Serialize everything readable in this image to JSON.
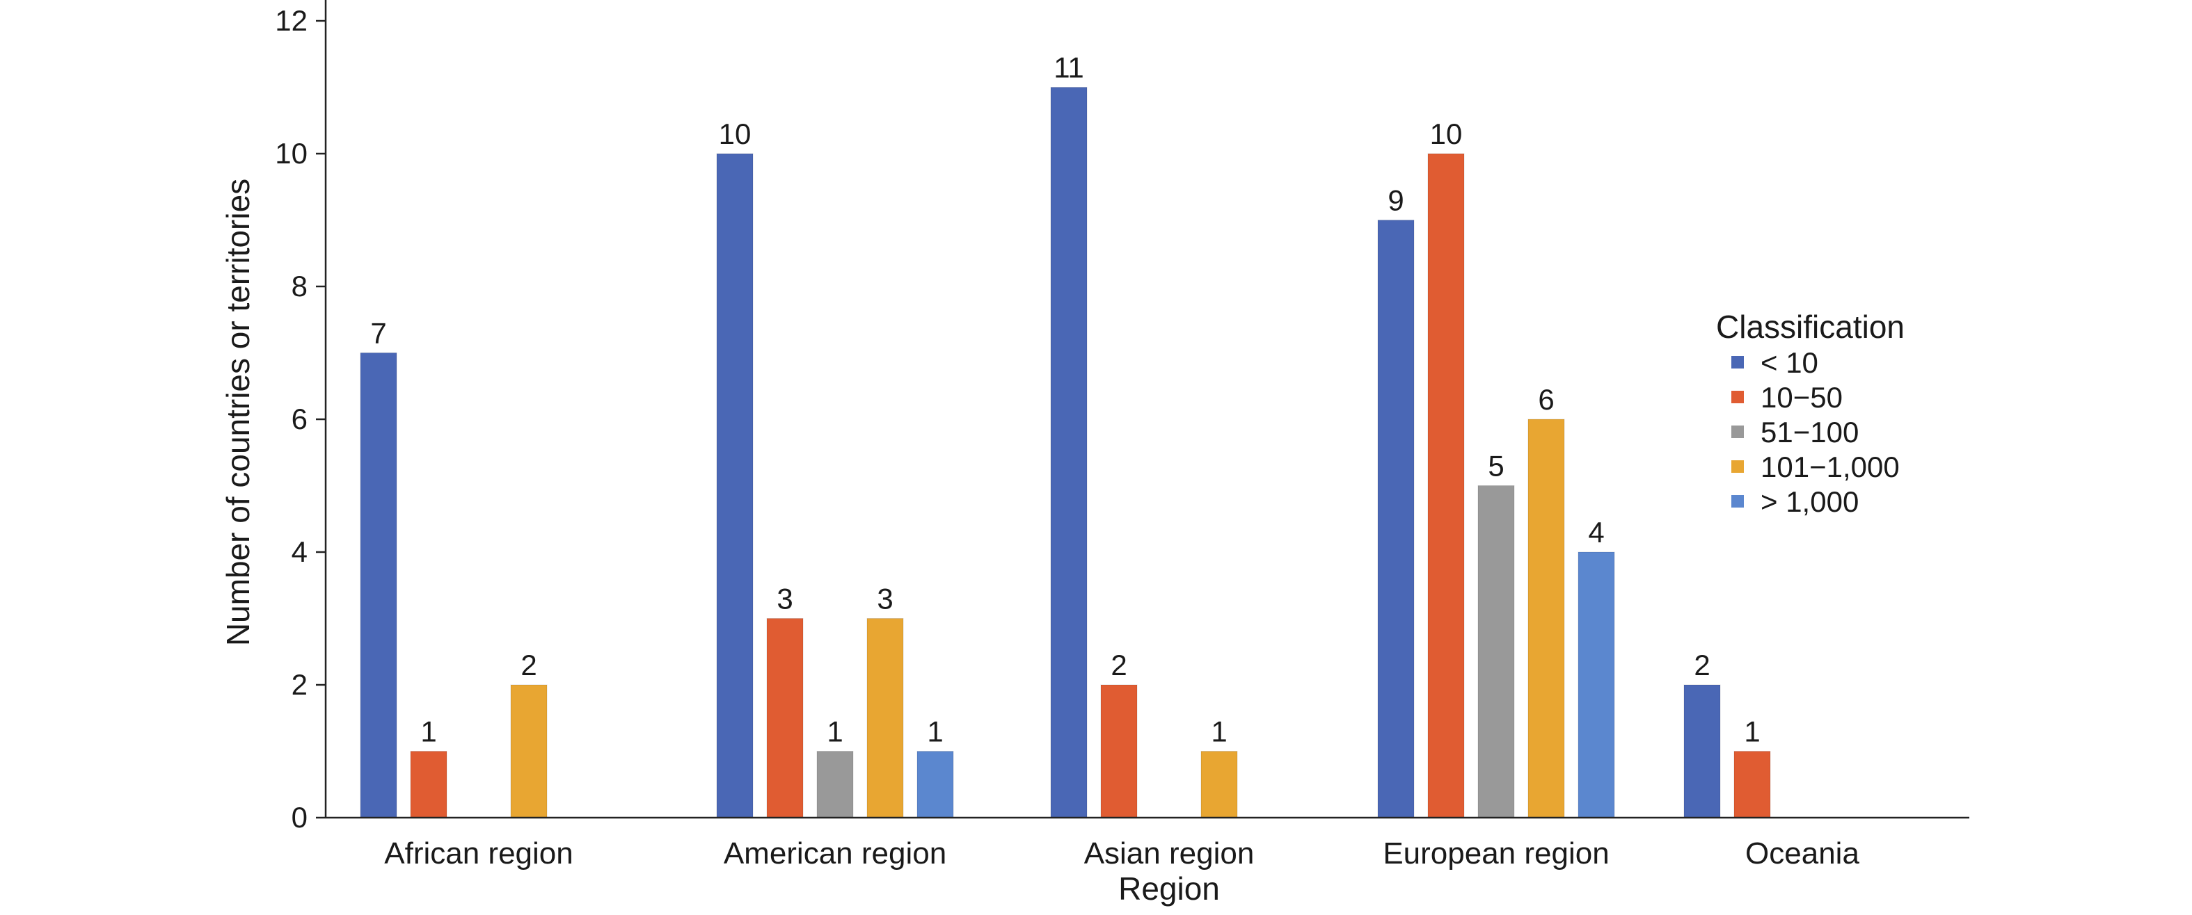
{
  "chart_data": {
    "type": "bar",
    "categories": [
      "African region",
      "American region",
      "Asian region",
      "European region",
      "Oceania"
    ],
    "xlabel": "Region",
    "ylabel": "Number of countries or territories",
    "ylim": [
      0,
      12
    ],
    "yticks": [
      0,
      2,
      4,
      6,
      8,
      10,
      12
    ],
    "grid": false,
    "legend": {
      "title": "Classification",
      "position": "right"
    },
    "series": [
      {
        "name": "< 10",
        "color": "#4a67b5",
        "values": [
          7,
          10,
          11,
          9,
          2
        ]
      },
      {
        "name": "10−50",
        "color": "#e05c32",
        "values": [
          1,
          3,
          2,
          10,
          1
        ]
      },
      {
        "name": "51−100",
        "color": "#999999",
        "values": [
          null,
          1,
          null,
          5,
          null
        ]
      },
      {
        "name": "101−1,000",
        "color": "#e8a632",
        "values": [
          2,
          3,
          1,
          6,
          null
        ]
      },
      {
        "name": "> 1,000",
        "color": "#5b87cf",
        "values": [
          null,
          1,
          null,
          4,
          null
        ]
      }
    ]
  }
}
